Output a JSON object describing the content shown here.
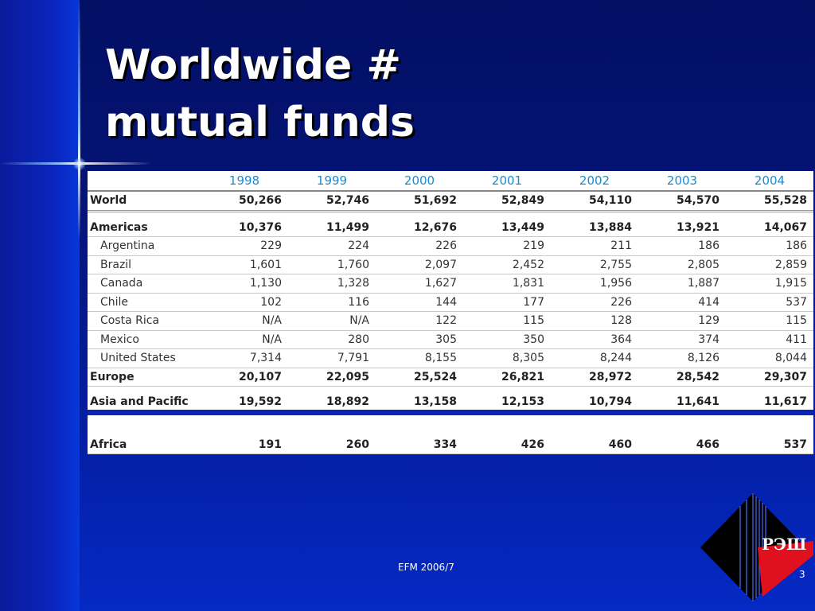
{
  "slide": {
    "title_line1": "Worldwide #",
    "title_line2": "mutual funds",
    "footer": "EFM 2006/7",
    "page_number": "3",
    "logo_text": "РЭШ"
  },
  "table": {
    "years": [
      "1998",
      "1999",
      "2000",
      "2001",
      "2002",
      "2003",
      "2004"
    ],
    "rows": [
      {
        "name": "World",
        "values": [
          "50,266",
          "52,746",
          "51,692",
          "52,849",
          "54,110",
          "54,570",
          "55,528"
        ]
      },
      {
        "name": "Americas",
        "values": [
          "10,376",
          "11,499",
          "12,676",
          "13,449",
          "13,884",
          "13,921",
          "14,067"
        ]
      },
      {
        "name": "Argentina",
        "values": [
          "229",
          "224",
          "226",
          "219",
          "211",
          "186",
          "186"
        ]
      },
      {
        "name": "Brazil",
        "values": [
          "1,601",
          "1,760",
          "2,097",
          "2,452",
          "2,755",
          "2,805",
          "2,859"
        ]
      },
      {
        "name": "Canada",
        "values": [
          "1,130",
          "1,328",
          "1,627",
          "1,831",
          "1,956",
          "1,887",
          "1,915"
        ]
      },
      {
        "name": "Chile",
        "values": [
          "102",
          "116",
          "144",
          "177",
          "226",
          "414",
          "537"
        ]
      },
      {
        "name": "Costa Rica",
        "values": [
          "N/A",
          "N/A",
          "122",
          "115",
          "128",
          "129",
          "115"
        ]
      },
      {
        "name": "Mexico",
        "values": [
          "N/A",
          "280",
          "305",
          "350",
          "364",
          "374",
          "411"
        ]
      },
      {
        "name": "United States",
        "values": [
          "7,314",
          "7,791",
          "8,155",
          "8,305",
          "8,244",
          "8,126",
          "8,044"
        ]
      },
      {
        "name": "Europe",
        "values": [
          "20,107",
          "22,095",
          "25,524",
          "26,821",
          "28,972",
          "28,542",
          "29,307"
        ]
      },
      {
        "name": "Asia and Pacific",
        "values": [
          "19,592",
          "18,892",
          "13,158",
          "12,153",
          "10,794",
          "11,641",
          "11,617"
        ]
      },
      {
        "name": "Africa",
        "values": [
          "191",
          "260",
          "334",
          "426",
          "460",
          "466",
          "537"
        ]
      }
    ]
  },
  "colors": {
    "background": "#041478",
    "title": "#ffffff",
    "year_header": "#1a8cd0",
    "logo_red": "#e0101e"
  }
}
